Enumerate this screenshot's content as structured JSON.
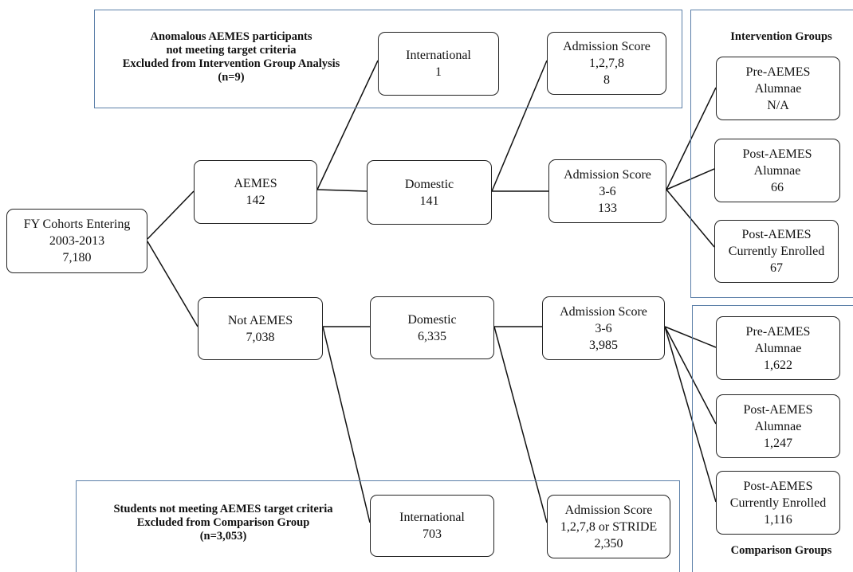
{
  "top_note": {
    "line1": "Anomalous AEMES participants",
    "line2": "not meeting target criteria",
    "line3": "Excluded from Intervention Group Analysis",
    "line4": "(n=9)"
  },
  "bottom_note": {
    "line1": "Students not meeting AEMES target criteria",
    "line2": "Excluded from Comparison Group",
    "line3": "(n=3,053)"
  },
  "intervention_heading": "Intervention Groups",
  "comparison_heading": "Comparison Groups",
  "nodes": {
    "fy": {
      "line1": "FY Cohorts Entering",
      "line2": "2003-2013",
      "value": "7,180"
    },
    "aemes": {
      "line1": "AEMES",
      "value": "142"
    },
    "not_aemes": {
      "line1": "Not AEMES",
      "value": "7,038"
    },
    "intl_top": {
      "line1": "International",
      "value": "1"
    },
    "dom_top": {
      "line1": "Domestic",
      "value": "141"
    },
    "adm_1278_top": {
      "line1": "Admission  Score",
      "line2": "1,2,7,8",
      "value": "8"
    },
    "adm_36_top": {
      "line1": "Admission  Score",
      "line2": "3-6",
      "value": "133"
    },
    "dom_bottom": {
      "line1": "Domestic",
      "value": "6,335"
    },
    "intl_bottom": {
      "line1": "International",
      "value": "703"
    },
    "adm_36_bottom": {
      "line1": "Admission  Score",
      "line2": "3-6",
      "value": "3,985"
    },
    "adm_stride": {
      "line1": "Admission  Score",
      "line2": "1,2,7,8 or STRIDE",
      "value": "2,350"
    },
    "int_pre": {
      "line1": "Pre-AEMES",
      "line2": "Alumnae",
      "value": "N/A"
    },
    "int_post_alum": {
      "line1": "Post-AEMES",
      "line2": "Alumnae",
      "value": "66"
    },
    "int_post_enr": {
      "line1": "Post-AEMES",
      "line2": "Currently Enrolled",
      "value": "67"
    },
    "cmp_pre": {
      "line1": "Pre-AEMES",
      "line2": "Alumnae",
      "value": "1,622"
    },
    "cmp_post_alum": {
      "line1": "Post-AEMES",
      "line2": "Alumnae",
      "value": "1,247"
    },
    "cmp_post_enr": {
      "line1": "Post-AEMES",
      "line2": "Currently Enrolled",
      "value": "1,116"
    }
  }
}
